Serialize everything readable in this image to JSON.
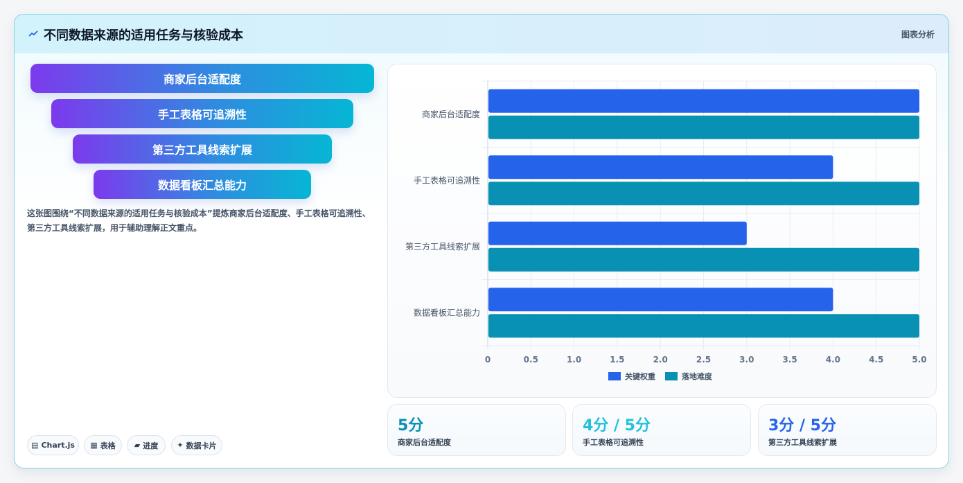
{
  "header": {
    "title": "不同数据来源的适用任务与核验成本",
    "tag": "图表分析"
  },
  "funnel": {
    "items": [
      "商家后台适配度",
      "手工表格可追溯性",
      "第三方工具线索扩展",
      "数据看板汇总能力"
    ]
  },
  "description": "这张图围绕“不同数据来源的适用任务与核验成本”提炼商家后台适配度、手工表格可追溯性、第三方工具线索扩展，用于辅助理解正文重点。",
  "chips": [
    {
      "icon": "▤",
      "label": "Chart.js"
    },
    {
      "icon": "▦",
      "label": "表格"
    },
    {
      "icon": "▰",
      "label": "进度"
    },
    {
      "icon": "✦",
      "label": "数据卡片"
    }
  ],
  "chart_data": {
    "type": "bar",
    "orientation": "horizontal",
    "categories": [
      "商家后台适配度",
      "手工表格可追溯性",
      "第三方工具线索扩展",
      "数据看板汇总能力"
    ],
    "series": [
      {
        "name": "关键权重",
        "values": [
          5,
          4,
          3,
          4
        ],
        "color": "#2563eb"
      },
      {
        "name": "落地难度",
        "values": [
          5,
          5,
          5,
          5
        ],
        "color": "#0891b2"
      }
    ],
    "xlim": [
      0,
      5
    ],
    "xticks": [
      "0",
      "0.5",
      "1.0",
      "1.5",
      "2.0",
      "2.5",
      "3.0",
      "3.5",
      "4.0",
      "4.5",
      "5.0"
    ],
    "grid": true,
    "legend": "bottom"
  },
  "stats": [
    {
      "value": "5分",
      "label": "商家后台适配度",
      "color": "#0891b2"
    },
    {
      "value": "4分 / 5分",
      "label": "手工表格可追溯性",
      "color": "#22c1dc"
    },
    {
      "value": "3分 / 5分",
      "label": "第三方工具线索扩展",
      "color": "#2563eb"
    }
  ]
}
